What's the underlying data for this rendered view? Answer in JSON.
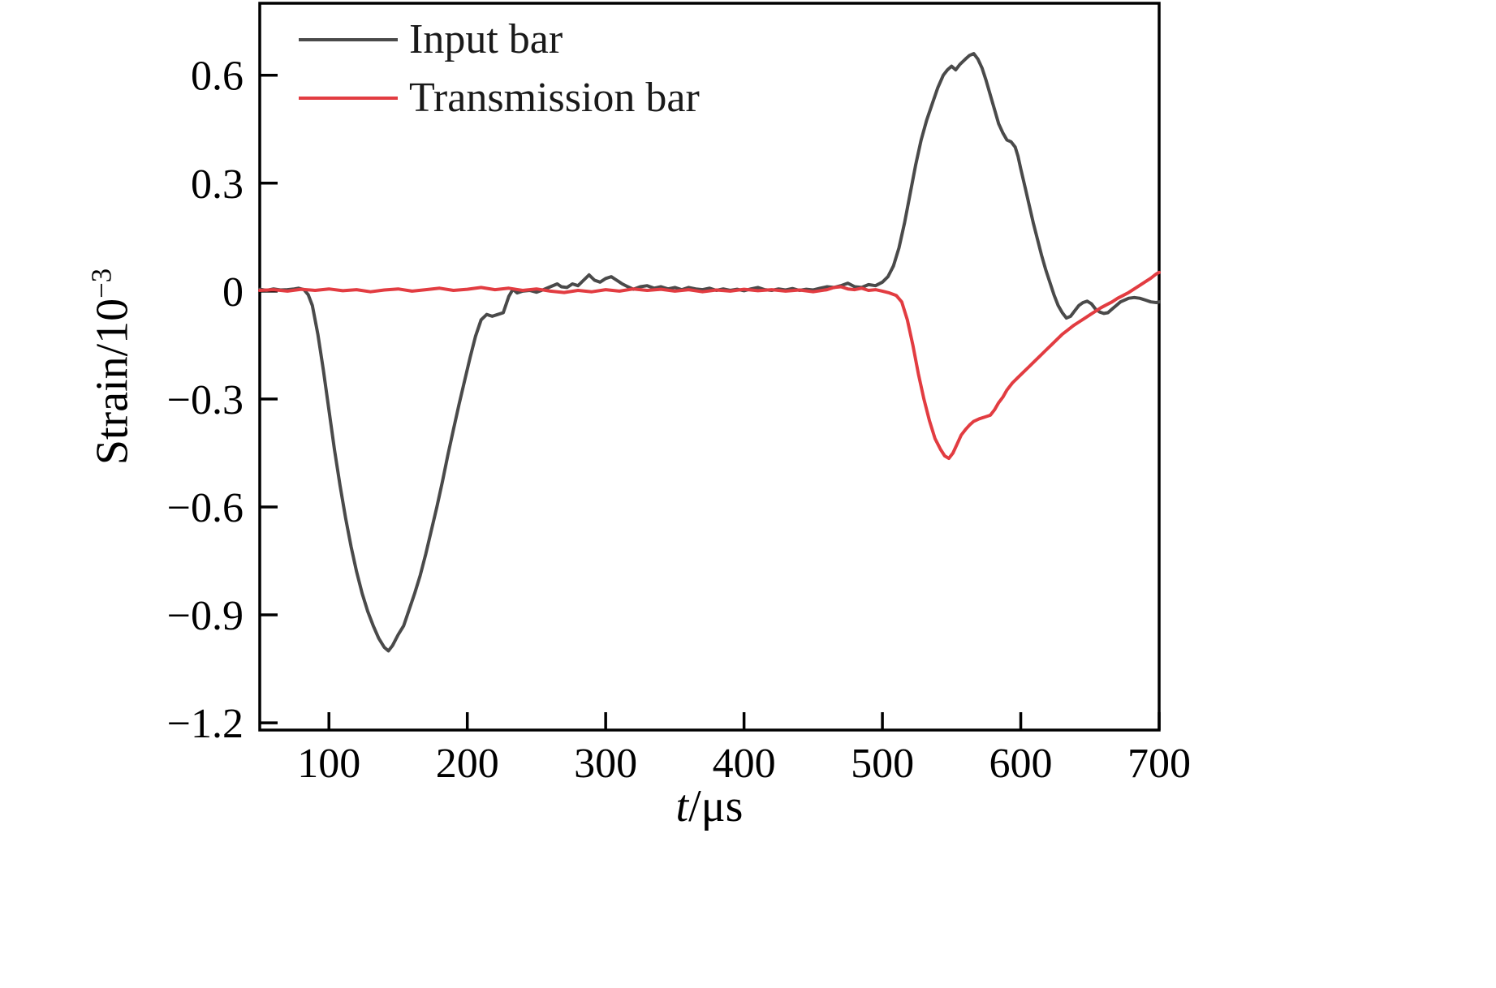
{
  "figure": {
    "background": "#ffffff",
    "xlabel": {
      "var": "t",
      "rest": "/μs"
    },
    "ylabel": {
      "base": "Strain/10",
      "exp": "−3"
    }
  },
  "chart_data": {
    "type": "line",
    "title": "",
    "xlabel": "t/μs",
    "ylabel": "Strain/10⁻³",
    "xlim": [
      50,
      700
    ],
    "ylim": [
      -1.22,
      0.8
    ],
    "grid": false,
    "legend_position": "top-left",
    "axis_color": "#000000",
    "xticks": [
      {
        "v": 100,
        "label": "100"
      },
      {
        "v": 200,
        "label": "200"
      },
      {
        "v": 300,
        "label": "300"
      },
      {
        "v": 400,
        "label": "400"
      },
      {
        "v": 500,
        "label": "500"
      },
      {
        "v": 600,
        "label": "600"
      },
      {
        "v": 700,
        "label": "700"
      }
    ],
    "yticks": [
      {
        "v": -1.2,
        "label": "−1.2"
      },
      {
        "v": -0.9,
        "label": "−0.9"
      },
      {
        "v": -0.6,
        "label": "−0.6"
      },
      {
        "v": -0.3,
        "label": "−0.3"
      },
      {
        "v": 0,
        "label": "0"
      },
      {
        "v": 0.3,
        "label": "0.3"
      },
      {
        "v": 0.6,
        "label": "0.6"
      }
    ],
    "series": [
      {
        "name": "Input bar",
        "color": "#4a4a4a",
        "points": [
          [
            50,
            0.005
          ],
          [
            55,
            0.002
          ],
          [
            60,
            0.006
          ],
          [
            65,
            0.003
          ],
          [
            70,
            0.004
          ],
          [
            75,
            0.006
          ],
          [
            78,
            0.008
          ],
          [
            82,
            0.004
          ],
          [
            85,
            -0.01
          ],
          [
            88,
            -0.04
          ],
          [
            92,
            -0.12
          ],
          [
            96,
            -0.22
          ],
          [
            100,
            -0.33
          ],
          [
            104,
            -0.44
          ],
          [
            108,
            -0.54
          ],
          [
            112,
            -0.63
          ],
          [
            116,
            -0.71
          ],
          [
            120,
            -0.78
          ],
          [
            124,
            -0.84
          ],
          [
            128,
            -0.89
          ],
          [
            132,
            -0.93
          ],
          [
            136,
            -0.965
          ],
          [
            140,
            -0.99
          ],
          [
            143,
            -1.0
          ],
          [
            146,
            -0.985
          ],
          [
            150,
            -0.955
          ],
          [
            154,
            -0.93
          ],
          [
            158,
            -0.885
          ],
          [
            162,
            -0.84
          ],
          [
            166,
            -0.79
          ],
          [
            170,
            -0.73
          ],
          [
            174,
            -0.665
          ],
          [
            178,
            -0.6
          ],
          [
            182,
            -0.53
          ],
          [
            186,
            -0.455
          ],
          [
            190,
            -0.385
          ],
          [
            194,
            -0.315
          ],
          [
            198,
            -0.25
          ],
          [
            202,
            -0.185
          ],
          [
            206,
            -0.125
          ],
          [
            210,
            -0.08
          ],
          [
            214,
            -0.065
          ],
          [
            218,
            -0.07
          ],
          [
            222,
            -0.065
          ],
          [
            226,
            -0.06
          ],
          [
            230,
            -0.015
          ],
          [
            233,
            0.005
          ],
          [
            236,
            -0.005
          ],
          [
            240,
            0.0
          ],
          [
            245,
            0.002
          ],
          [
            250,
            -0.003
          ],
          [
            255,
            0.004
          ],
          [
            260,
            0.012
          ],
          [
            265,
            0.02
          ],
          [
            268,
            0.012
          ],
          [
            272,
            0.01
          ],
          [
            276,
            0.02
          ],
          [
            280,
            0.015
          ],
          [
            284,
            0.03
          ],
          [
            288,
            0.045
          ],
          [
            292,
            0.03
          ],
          [
            296,
            0.025
          ],
          [
            300,
            0.035
          ],
          [
            304,
            0.04
          ],
          [
            308,
            0.03
          ],
          [
            312,
            0.02
          ],
          [
            316,
            0.012
          ],
          [
            320,
            0.005
          ],
          [
            325,
            0.012
          ],
          [
            330,
            0.015
          ],
          [
            335,
            0.008
          ],
          [
            340,
            0.012
          ],
          [
            345,
            0.006
          ],
          [
            350,
            0.01
          ],
          [
            355,
            0.004
          ],
          [
            360,
            0.01
          ],
          [
            365,
            0.006
          ],
          [
            370,
            0.004
          ],
          [
            375,
            0.008
          ],
          [
            380,
            0.002
          ],
          [
            385,
            0.006
          ],
          [
            390,
            0.002
          ],
          [
            395,
            0.005
          ],
          [
            400,
            0.001
          ],
          [
            405,
            0.006
          ],
          [
            410,
            0.01
          ],
          [
            415,
            0.004
          ],
          [
            420,
            0.002
          ],
          [
            425,
            0.006
          ],
          [
            430,
            0.003
          ],
          [
            435,
            0.007
          ],
          [
            440,
            0.002
          ],
          [
            445,
            0.005
          ],
          [
            450,
            0.003
          ],
          [
            455,
            0.008
          ],
          [
            460,
            0.012
          ],
          [
            465,
            0.01
          ],
          [
            470,
            0.015
          ],
          [
            475,
            0.022
          ],
          [
            480,
            0.012
          ],
          [
            485,
            0.01
          ],
          [
            490,
            0.018
          ],
          [
            495,
            0.015
          ],
          [
            500,
            0.025
          ],
          [
            504,
            0.04
          ],
          [
            508,
            0.07
          ],
          [
            512,
            0.12
          ],
          [
            516,
            0.19
          ],
          [
            520,
            0.27
          ],
          [
            524,
            0.35
          ],
          [
            528,
            0.42
          ],
          [
            532,
            0.475
          ],
          [
            536,
            0.52
          ],
          [
            540,
            0.565
          ],
          [
            544,
            0.6
          ],
          [
            547,
            0.615
          ],
          [
            550,
            0.625
          ],
          [
            553,
            0.615
          ],
          [
            556,
            0.63
          ],
          [
            560,
            0.645
          ],
          [
            563,
            0.655
          ],
          [
            566,
            0.66
          ],
          [
            569,
            0.645
          ],
          [
            572,
            0.62
          ],
          [
            575,
            0.585
          ],
          [
            578,
            0.545
          ],
          [
            581,
            0.505
          ],
          [
            584,
            0.465
          ],
          [
            587,
            0.44
          ],
          [
            590,
            0.42
          ],
          [
            593,
            0.415
          ],
          [
            596,
            0.4
          ],
          [
            598,
            0.375
          ],
          [
            600,
            0.34
          ],
          [
            603,
            0.29
          ],
          [
            606,
            0.24
          ],
          [
            609,
            0.19
          ],
          [
            612,
            0.145
          ],
          [
            615,
            0.1
          ],
          [
            618,
            0.06
          ],
          [
            621,
            0.025
          ],
          [
            624,
            -0.01
          ],
          [
            627,
            -0.04
          ],
          [
            630,
            -0.06
          ],
          [
            633,
            -0.075
          ],
          [
            636,
            -0.07
          ],
          [
            639,
            -0.055
          ],
          [
            642,
            -0.04
          ],
          [
            645,
            -0.032
          ],
          [
            648,
            -0.028
          ],
          [
            651,
            -0.035
          ],
          [
            654,
            -0.05
          ],
          [
            657,
            -0.058
          ],
          [
            660,
            -0.062
          ],
          [
            663,
            -0.06
          ],
          [
            666,
            -0.05
          ],
          [
            669,
            -0.04
          ],
          [
            672,
            -0.03
          ],
          [
            675,
            -0.025
          ],
          [
            678,
            -0.02
          ],
          [
            682,
            -0.018
          ],
          [
            686,
            -0.02
          ],
          [
            690,
            -0.025
          ],
          [
            694,
            -0.03
          ],
          [
            698,
            -0.032
          ],
          [
            700,
            -0.03
          ]
        ]
      },
      {
        "name": "Transmission bar",
        "color": "#e23c41",
        "points": [
          [
            50,
            0.002
          ],
          [
            60,
            0.004
          ],
          [
            70,
            0.0
          ],
          [
            80,
            0.005
          ],
          [
            90,
            0.002
          ],
          [
            100,
            0.006
          ],
          [
            110,
            0.001
          ],
          [
            120,
            0.004
          ],
          [
            130,
            -0.002
          ],
          [
            140,
            0.003
          ],
          [
            150,
            0.006
          ],
          [
            160,
            0.0
          ],
          [
            170,
            0.004
          ],
          [
            180,
            0.008
          ],
          [
            190,
            0.002
          ],
          [
            200,
            0.005
          ],
          [
            210,
            0.01
          ],
          [
            220,
            0.004
          ],
          [
            230,
            0.008
          ],
          [
            240,
            0.002
          ],
          [
            250,
            0.006
          ],
          [
            260,
            0.0
          ],
          [
            270,
            -0.004
          ],
          [
            280,
            0.002
          ],
          [
            290,
            -0.002
          ],
          [
            300,
            0.004
          ],
          [
            310,
            0.0
          ],
          [
            320,
            0.006
          ],
          [
            330,
            0.002
          ],
          [
            340,
            0.005
          ],
          [
            350,
            0.0
          ],
          [
            360,
            0.004
          ],
          [
            370,
            -0.002
          ],
          [
            380,
            0.003
          ],
          [
            390,
            0.0
          ],
          [
            400,
            0.005
          ],
          [
            410,
            0.001
          ],
          [
            420,
            0.004
          ],
          [
            430,
            0.0
          ],
          [
            440,
            0.003
          ],
          [
            450,
            -0.002
          ],
          [
            460,
            0.004
          ],
          [
            465,
            0.01
          ],
          [
            470,
            0.012
          ],
          [
            475,
            0.006
          ],
          [
            480,
            0.004
          ],
          [
            485,
            0.008
          ],
          [
            490,
            0.002
          ],
          [
            495,
            0.004
          ],
          [
            500,
            0.0
          ],
          [
            505,
            -0.005
          ],
          [
            510,
            -0.012
          ],
          [
            514,
            -0.03
          ],
          [
            518,
            -0.08
          ],
          [
            522,
            -0.15
          ],
          [
            526,
            -0.23
          ],
          [
            530,
            -0.3
          ],
          [
            534,
            -0.36
          ],
          [
            538,
            -0.41
          ],
          [
            542,
            -0.44
          ],
          [
            545,
            -0.458
          ],
          [
            548,
            -0.465
          ],
          [
            551,
            -0.45
          ],
          [
            554,
            -0.425
          ],
          [
            557,
            -0.4
          ],
          [
            560,
            -0.385
          ],
          [
            563,
            -0.372
          ],
          [
            566,
            -0.362
          ],
          [
            570,
            -0.355
          ],
          [
            574,
            -0.35
          ],
          [
            578,
            -0.345
          ],
          [
            581,
            -0.33
          ],
          [
            584,
            -0.31
          ],
          [
            587,
            -0.295
          ],
          [
            590,
            -0.275
          ],
          [
            594,
            -0.255
          ],
          [
            598,
            -0.24
          ],
          [
            602,
            -0.225
          ],
          [
            606,
            -0.21
          ],
          [
            610,
            -0.195
          ],
          [
            614,
            -0.18
          ],
          [
            618,
            -0.165
          ],
          [
            622,
            -0.15
          ],
          [
            626,
            -0.135
          ],
          [
            630,
            -0.12
          ],
          [
            634,
            -0.108
          ],
          [
            638,
            -0.096
          ],
          [
            642,
            -0.086
          ],
          [
            646,
            -0.076
          ],
          [
            650,
            -0.066
          ],
          [
            654,
            -0.056
          ],
          [
            658,
            -0.046
          ],
          [
            662,
            -0.038
          ],
          [
            666,
            -0.03
          ],
          [
            670,
            -0.02
          ],
          [
            674,
            -0.012
          ],
          [
            678,
            -0.004
          ],
          [
            682,
            0.006
          ],
          [
            686,
            0.016
          ],
          [
            690,
            0.026
          ],
          [
            694,
            0.036
          ],
          [
            698,
            0.048
          ],
          [
            700,
            0.052
          ]
        ]
      }
    ]
  }
}
